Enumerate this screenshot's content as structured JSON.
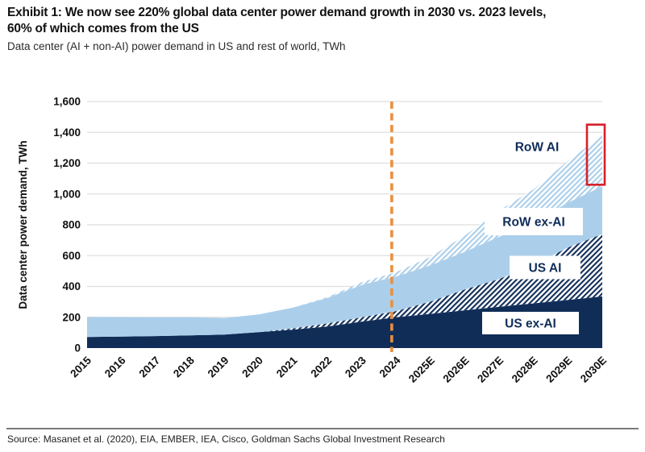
{
  "header": {
    "title_line1": "Exhibit 1: We now see 220% global data center power demand growth in 2030 vs. 2023 levels,",
    "title_line2": "60% of which comes from the US",
    "subtitle": "Data center (AI + non-AI) power demand in US and rest of world, TWh"
  },
  "footer": {
    "source": "Source: Masanet et al. (2020), EIA, EMBER, IEA, Cisco, Goldman Sachs Global Investment Research"
  },
  "colors": {
    "navy": "#102d58",
    "light_blue": "#abcfeb",
    "orange": "#ea8f3e",
    "red": "#d6202a",
    "grid": "#dfdfdf",
    "label_text": "#0f2d5a",
    "axis_text": "#111111"
  },
  "chart_data": {
    "type": "area",
    "stacked": true,
    "title": "Exhibit 1: We now see 220% global data center power demand growth in 2030 vs. 2023 levels, 60% of which comes from the US",
    "subtitle": "Data center (AI + non-AI) power demand in US and rest of world, TWh",
    "xlabel": "",
    "ylabel": "Data center power demand, TWh",
    "ylim": [
      0,
      1600
    ],
    "ytick_values": [
      0,
      200,
      400,
      600,
      800,
      1000,
      1200,
      1400,
      1600
    ],
    "ytick_labels": [
      "0",
      "200",
      "400",
      "600",
      "800",
      "1,000",
      "1,200",
      "1,400",
      "1,600"
    ],
    "grid": "horizontal",
    "legend_position": "inline-labels",
    "categories": [
      "2015",
      "2016",
      "2017",
      "2018",
      "2019",
      "2020",
      "2021",
      "2022",
      "2023",
      "2024",
      "2025E",
      "2026E",
      "2027E",
      "2028E",
      "2029E",
      "2030E"
    ],
    "series": [
      {
        "name": "US ex-AI",
        "color": "navy",
        "style": "solid",
        "values": [
          72,
          75,
          78,
          82,
          88,
          103,
          120,
          140,
          172,
          200,
          222,
          245,
          268,
          290,
          312,
          335
        ]
      },
      {
        "name": "US AI",
        "color": "navy",
        "style": "hatch",
        "values": [
          0,
          0,
          0,
          0,
          0,
          0,
          8,
          20,
          28,
          40,
          80,
          135,
          180,
          250,
          340,
          405
        ]
      },
      {
        "name": "RoW ex-AI",
        "color": "light_blue",
        "style": "solid",
        "values": [
          130,
          126,
          122,
          118,
          107,
          115,
          135,
          165,
          210,
          225,
          235,
          245,
          275,
          280,
          292,
          310
        ]
      },
      {
        "name": "RoW AI",
        "color": "light_blue",
        "style": "hatch",
        "values": [
          0,
          0,
          0,
          0,
          0,
          0,
          0,
          6,
          18,
          28,
          55,
          105,
          170,
          210,
          270,
          330
        ]
      }
    ],
    "annotations": {
      "forecast_divider": {
        "category": "2024",
        "style": "dashed",
        "color": "orange"
      },
      "highlight_box": {
        "category": "2030E",
        "value_range": [
          1060,
          1450
        ],
        "color": "red"
      }
    }
  }
}
